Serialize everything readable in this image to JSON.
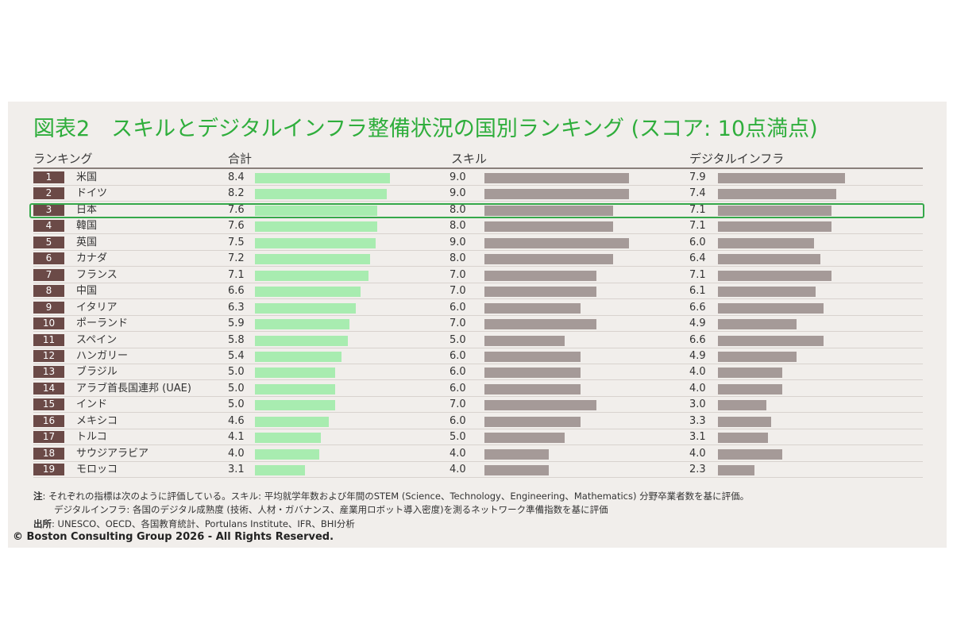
{
  "title": "図表2　スキルとデジタルインフラ整備状況の国別ランキング (スコア: 10点満点)",
  "headers": {
    "ranking": "ランキング",
    "total": "合計",
    "skill": "スキル",
    "digital": "デジタルインフラ"
  },
  "chart_data": {
    "type": "bar",
    "title": "図表2　スキルとデジタルインフラ整備状況の国別ランキング (スコア: 10点満点)",
    "ranks": [
      "1",
      "2",
      "3",
      "4",
      "5",
      "6",
      "7",
      "8",
      "9",
      "10",
      "11",
      "12",
      "13",
      "14",
      "15",
      "16",
      "17",
      "18",
      "19"
    ],
    "categories": [
      "米国",
      "ドイツ",
      "日本",
      "韓国",
      "英国",
      "カナダ",
      "フランス",
      "中国",
      "イタリア",
      "ポーランド",
      "スペイン",
      "ハンガリー",
      "ブラジル",
      "アラブ首長国連邦 (UAE)",
      "インド",
      "メキシコ",
      "トルコ",
      "サウジアラビア",
      "モロッコ"
    ],
    "series": [
      {
        "name": "合計",
        "values": [
          8.4,
          8.2,
          7.6,
          7.6,
          7.5,
          7.2,
          7.1,
          6.6,
          6.3,
          5.9,
          5.8,
          5.4,
          5.0,
          5.0,
          5.0,
          4.6,
          4.1,
          4.0,
          3.1
        ],
        "labels": [
          "8.4",
          "8.2",
          "7.6",
          "7.6",
          "7.5",
          "7.2",
          "7.1",
          "6.6",
          "6.3",
          "5.9",
          "5.8",
          "5.4",
          "5.0",
          "5.0",
          "5.0",
          "4.6",
          "4.1",
          "4.0",
          "3.1"
        ]
      },
      {
        "name": "スキル",
        "values": [
          9.0,
          9.0,
          8.0,
          8.0,
          9.0,
          8.0,
          7.0,
          7.0,
          6.0,
          7.0,
          5.0,
          6.0,
          6.0,
          6.0,
          7.0,
          6.0,
          5.0,
          4.0,
          4.0
        ],
        "labels": [
          "9.0",
          "9.0",
          "8.0",
          "8.0",
          "9.0",
          "8.0",
          "7.0",
          "7.0",
          "6.0",
          "7.0",
          "5.0",
          "6.0",
          "6.0",
          "6.0",
          "7.0",
          "6.0",
          "5.0",
          "4.0",
          "4.0"
        ]
      },
      {
        "name": "デジタルインフラ",
        "values": [
          7.9,
          7.4,
          7.1,
          7.1,
          6.0,
          6.4,
          7.1,
          6.1,
          6.6,
          4.9,
          6.6,
          4.9,
          4.0,
          4.0,
          3.0,
          3.3,
          3.1,
          4.0,
          2.3
        ],
        "labels": [
          "7.9",
          "7.4",
          "7.1",
          "7.1",
          "6.0",
          "6.4",
          "7.1",
          "6.1",
          "6.6",
          "4.9",
          "6.6",
          "4.9",
          "4.0",
          "4.0",
          "3.0",
          "3.3",
          "3.1",
          "4.0",
          "2.3"
        ]
      }
    ],
    "highlight_rank": "3",
    "xlim": [
      0,
      10
    ],
    "colors": {
      "total": "#a8ecb0",
      "skill": "#a59a98",
      "digital": "#a59a98",
      "rank_badge": "#6b4a47",
      "highlight": "#35a84a",
      "title": "#2fae3c"
    }
  },
  "notes": {
    "note_label": "注",
    "note_line1": ": それぞれの指標は次のように評価している。スキル: 平均就学年数および年間のSTEM (Science、Technology、Engineering、Mathematics) 分野卒業者数を基に評価。",
    "note_line2": "デジタルインフラ: 各国のデジタル成熟度 (技術、人材・ガバナンス、産業用ロボット導入密度)を測るネットワーク準備指数を基に評価",
    "source_label": "出所",
    "source_text": ": UNESCO、OECD、各国教育統計、Portulans Institute、IFR、BHI分析"
  },
  "copyright": "© Boston Consulting Group 2026 - All Rights Reserved."
}
